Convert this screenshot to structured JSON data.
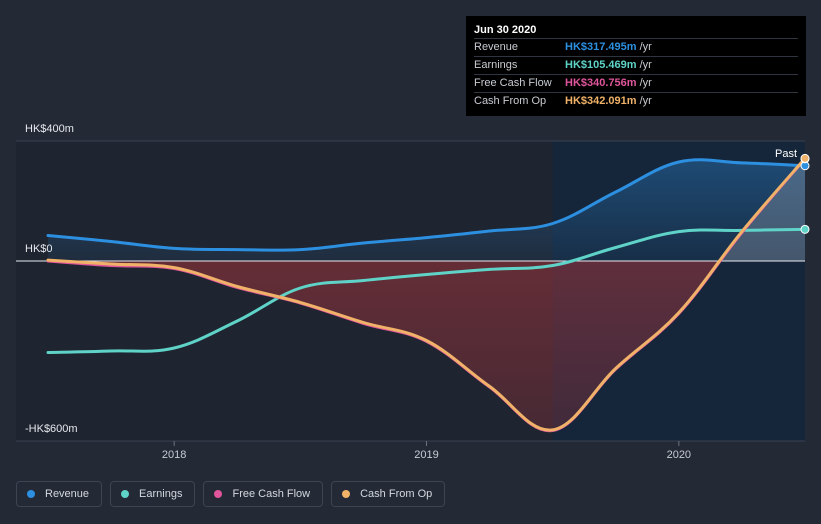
{
  "chart_data": {
    "type": "line",
    "x_domain": [
      2017.5,
      2020.5
    ],
    "ylim": [
      -600,
      400
    ],
    "y_ticks": [
      400,
      0,
      -600
    ],
    "y_tick_labels": [
      "HK$400m",
      "HK$0",
      "-HK$600m"
    ],
    "x_ticks": [
      2018,
      2019,
      2020
    ],
    "x_tick_labels": [
      "2018",
      "2019",
      "2020"
    ],
    "highlight_from": 2019.5,
    "highlight_label": "Past",
    "series": [
      {
        "key": "revenue",
        "name": "Revenue",
        "color": "#2d8fe0",
        "points": [
          [
            2017.5,
            85
          ],
          [
            2017.75,
            65
          ],
          [
            2018.0,
            42
          ],
          [
            2018.25,
            38
          ],
          [
            2018.5,
            38
          ],
          [
            2018.75,
            60
          ],
          [
            2019.0,
            78
          ],
          [
            2019.25,
            100
          ],
          [
            2019.5,
            125
          ],
          [
            2019.75,
            230
          ],
          [
            2020.0,
            330
          ],
          [
            2020.25,
            327
          ],
          [
            2020.5,
            317.5
          ]
        ]
      },
      {
        "key": "earnings",
        "name": "Earnings",
        "color": "#5fd3c7",
        "points": [
          [
            2017.5,
            -305
          ],
          [
            2017.75,
            -300
          ],
          [
            2018.0,
            -290
          ],
          [
            2018.25,
            -200
          ],
          [
            2018.5,
            -90
          ],
          [
            2018.75,
            -65
          ],
          [
            2019.0,
            -45
          ],
          [
            2019.25,
            -28
          ],
          [
            2019.5,
            -15
          ],
          [
            2019.75,
            45
          ],
          [
            2020.0,
            98
          ],
          [
            2020.25,
            102
          ],
          [
            2020.5,
            105.5
          ]
        ]
      },
      {
        "key": "fcf",
        "name": "Free Cash Flow",
        "color": "#e0559b",
        "points": [
          [
            2017.5,
            0
          ],
          [
            2017.75,
            -15
          ],
          [
            2018.0,
            -25
          ],
          [
            2018.25,
            -88
          ],
          [
            2018.5,
            -140
          ],
          [
            2018.75,
            -208
          ],
          [
            2019.0,
            -268
          ],
          [
            2019.25,
            -420
          ],
          [
            2019.5,
            -565
          ],
          [
            2019.75,
            -360
          ],
          [
            2020.0,
            -175
          ],
          [
            2020.25,
            95
          ],
          [
            2020.5,
            340.8
          ]
        ]
      },
      {
        "key": "cfo",
        "name": "Cash From Op",
        "color": "#f0b268",
        "points": [
          [
            2017.5,
            3
          ],
          [
            2017.75,
            -10
          ],
          [
            2018.0,
            -22
          ],
          [
            2018.25,
            -85
          ],
          [
            2018.5,
            -138
          ],
          [
            2018.75,
            -205
          ],
          [
            2019.0,
            -265
          ],
          [
            2019.25,
            -418
          ],
          [
            2019.5,
            -563
          ],
          [
            2019.75,
            -358
          ],
          [
            2020.0,
            -172
          ],
          [
            2020.25,
            98
          ],
          [
            2020.5,
            342.1
          ]
        ]
      }
    ]
  },
  "tooltip": {
    "date": "Jun 30 2020",
    "rows": [
      {
        "label": "Revenue",
        "value": "HK$317.495m",
        "unit": "/yr",
        "color": "#2d8fe0"
      },
      {
        "label": "Earnings",
        "value": "HK$105.469m",
        "unit": "/yr",
        "color": "#5fd3c7"
      },
      {
        "label": "Free Cash Flow",
        "value": "HK$340.756m",
        "unit": "/yr",
        "color": "#e0559b"
      },
      {
        "label": "Cash From Op",
        "value": "HK$342.091m",
        "unit": "/yr",
        "color": "#f0b268"
      }
    ]
  },
  "legend": [
    {
      "label": "Revenue",
      "color": "#2d8fe0"
    },
    {
      "label": "Earnings",
      "color": "#5fd3c7"
    },
    {
      "label": "Free Cash Flow",
      "color": "#e0559b"
    },
    {
      "label": "Cash From Op",
      "color": "#f0b268"
    }
  ]
}
